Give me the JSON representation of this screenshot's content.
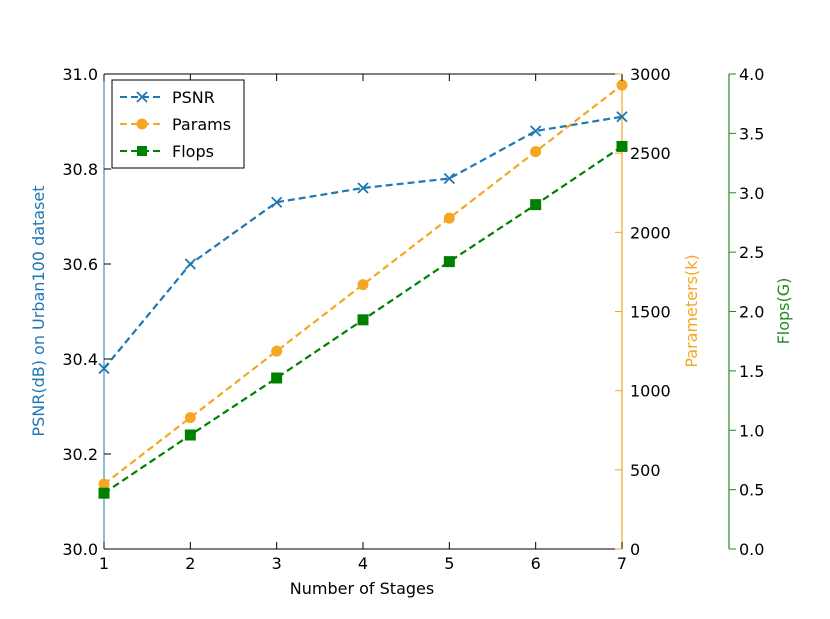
{
  "chart_data": {
    "type": "line",
    "xlabel": "Number of Stages",
    "x": [
      1,
      2,
      3,
      4,
      5,
      6,
      7
    ],
    "xlim": [
      1,
      7
    ],
    "x_ticks": [
      "1",
      "2",
      "3",
      "4",
      "5",
      "6",
      "7"
    ],
    "legend_position": "top-left",
    "grid": false,
    "axes": {
      "left": {
        "label": "PSNR(dB) on Urban100 dataset",
        "color": "#1f77b4",
        "range": [
          30.0,
          31.0
        ],
        "ticks": [
          "30.0",
          "30.2",
          "30.4",
          "30.6",
          "30.8",
          "31.0"
        ]
      },
      "right1": {
        "label": "Parameters(k)",
        "color": "#f5a623",
        "range": [
          0,
          3000
        ],
        "ticks": [
          "0",
          "500",
          "1000",
          "1500",
          "2000",
          "2500",
          "3000"
        ]
      },
      "right2": {
        "label": "Flops(G)",
        "color": "#228b22",
        "range": [
          0.0,
          4.0
        ],
        "ticks": [
          "0.0",
          "0.5",
          "1.0",
          "1.5",
          "2.0",
          "2.5",
          "3.0",
          "3.5",
          "4.0"
        ]
      }
    },
    "series": [
      {
        "name": "PSNR",
        "axis": "left",
        "marker": "x",
        "color": "#1f77b4",
        "values": [
          30.38,
          30.6,
          30.73,
          30.76,
          30.78,
          30.88,
          30.91
        ]
      },
      {
        "name": "Params",
        "axis": "right1",
        "marker": "circle",
        "color": "#f5a623",
        "values": [
          410,
          830,
          1250,
          1670,
          2090,
          2510,
          2930
        ]
      },
      {
        "name": "Flops",
        "axis": "right2",
        "marker": "square",
        "color": "#008000",
        "values": [
          0.47,
          0.96,
          1.44,
          1.93,
          2.42,
          2.9,
          3.39
        ]
      }
    ]
  }
}
